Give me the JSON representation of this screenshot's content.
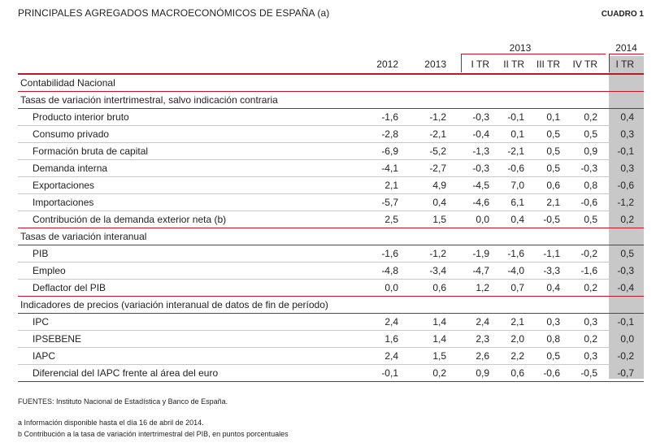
{
  "title": "PRINCIPALES AGREGADOS MACROECONÓMICOS DE ESPAÑA (a)",
  "cuadro": "CUADRO 1",
  "header": {
    "group_2013": "2013",
    "group_2014": "2014",
    "columns": [
      "2012",
      "2013",
      "I TR",
      "II TR",
      "III TR",
      "IV TR",
      "I TR"
    ]
  },
  "sections": [
    {
      "title": "Contabilidad Nacional",
      "groups": [
        {
          "title": "Tasas de variación intertrimestral, salvo indicación contraria",
          "rows": [
            {
              "label": "Producto interior bruto",
              "values": [
                "-1,6",
                "-1,2",
                "-0,3",
                "-0,1",
                "0,1",
                "0,2",
                "0,4"
              ]
            },
            {
              "label": "Consumo privado",
              "values": [
                "-2,8",
                "-2,1",
                "-0,4",
                "0,1",
                "0,5",
                "0,5",
                "0,3"
              ]
            },
            {
              "label": "Formación bruta de capital",
              "values": [
                "-6,9",
                "-5,2",
                "-1,3",
                "-2,1",
                "0,5",
                "0,9",
                "-0,1"
              ]
            },
            {
              "label": "Demanda interna",
              "values": [
                "-4,1",
                "-2,7",
                "-0,3",
                "-0,6",
                "0,5",
                "-0,3",
                "0,3"
              ]
            },
            {
              "label": "Exportaciones",
              "values": [
                "2,1",
                "4,9",
                "-4,5",
                "7,0",
                "0,6",
                "0,8",
                "-0,6"
              ]
            },
            {
              "label": "Importaciones",
              "values": [
                "-5,7",
                "0,4",
                "-4,6",
                "6,1",
                "2,1",
                "-0,6",
                "-1,2"
              ]
            },
            {
              "label": "Contribución de la demanda exterior neta (b)",
              "values": [
                "2,5",
                "1,5",
                "0,0",
                "0,4",
                "-0,5",
                "0,5",
                "0,2"
              ]
            }
          ]
        },
        {
          "title": "Tasas de variación interanual",
          "rows": [
            {
              "label": "PIB",
              "values": [
                "-1,6",
                "-1,2",
                "-1,9",
                "-1,6",
                "-1,1",
                "-0,2",
                "0,5"
              ]
            },
            {
              "label": "Empleo",
              "values": [
                "-4,8",
                "-3,4",
                "-4,7",
                "-4,0",
                "-3,3",
                "-1,6",
                "-0,3"
              ]
            },
            {
              "label": "Deflactor del PIB",
              "values": [
                "0,0",
                "0,6",
                "1,2",
                "0,7",
                "0,4",
                "0,2",
                "-0,4"
              ]
            }
          ]
        }
      ]
    },
    {
      "title": "Indicadores de precios (variación interanual de datos de fin de período)",
      "rows": [
        {
          "label": "IPC",
          "values": [
            "2,4",
            "1,4",
            "2,4",
            "2,1",
            "0,3",
            "0,3",
            "-0,1"
          ]
        },
        {
          "label": "IPSEBENE",
          "values": [
            "1,6",
            "1,4",
            "2,3",
            "2,0",
            "0,8",
            "0,2",
            "0,0"
          ]
        },
        {
          "label": "IAPC",
          "values": [
            "2,4",
            "1,5",
            "2,6",
            "2,2",
            "0,5",
            "0,3",
            "-0,2"
          ]
        },
        {
          "label": "Diferencial del IAPC frente al área del euro",
          "values": [
            "-0,1",
            "0,2",
            "0,9",
            "0,6",
            "-0,6",
            "-0,5",
            "-0,7"
          ]
        }
      ]
    }
  ],
  "footer": {
    "sources": "FUENTES: Instituto Nacional de Estadística y Banco de España.",
    "note_a": "a  Información disponible hasta el día 16 de abril de 2014.",
    "note_b": "b  Contribución a la tasa de variación intertrimestral del PIB, en puntos porcentuales"
  },
  "colors": {
    "rule": "#b11d2c",
    "shade": "#c8c8c8"
  }
}
